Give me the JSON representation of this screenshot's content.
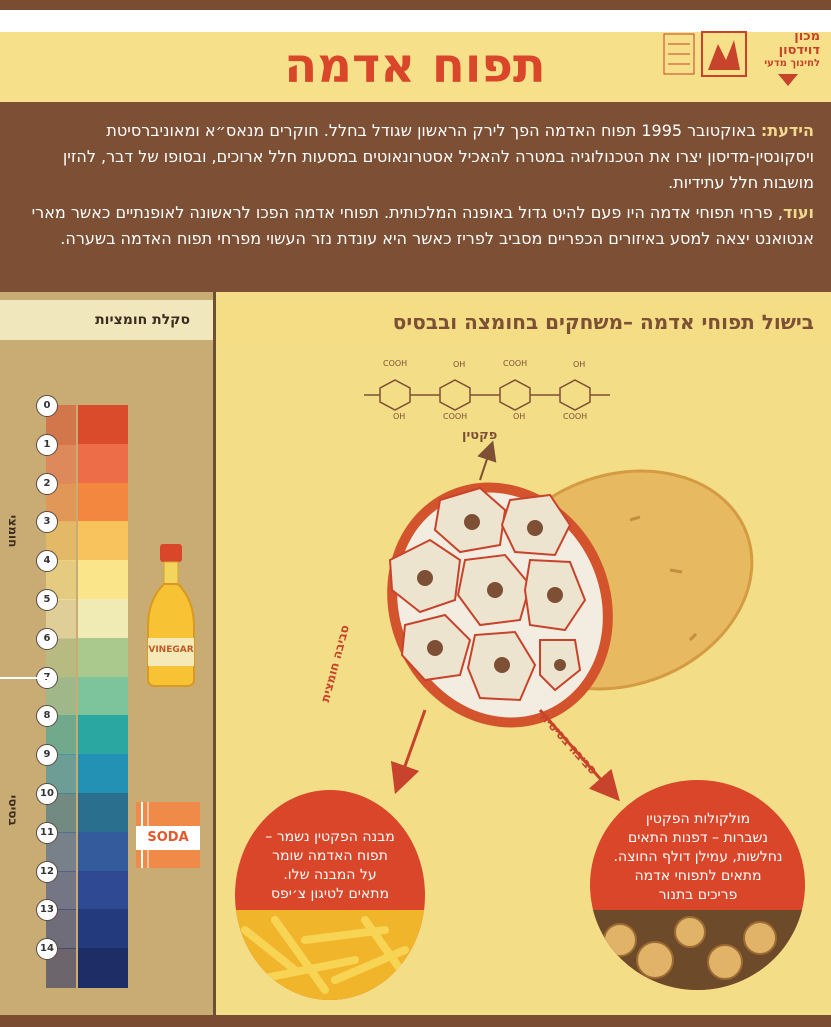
{
  "header": {
    "title": "תפוח אדמה",
    "logo_text_lines": [
      "מכון",
      "דוידסון",
      "לחינוך מדעי"
    ]
  },
  "facts": {
    "p1_label": "הידעת:",
    "p1_text": " באוקטובר 1995 תפוח האדמה הפך לירק הראשון שגודל בחלל. חוקרים מנאס״א ומאוניברסיטת ויסקונסין-מדיסון יצרו את הטכנולוגיה במטרה להאכיל אסטרונאוטים במסעות חלל ארוכים, ובסופו של דבר, להזין מושבות חלל עתידיות.",
    "p2_label": "ועוד",
    "p2_text": ", פרחי תפוחי אדמה היו פעם להיט גדול באופנה המלכותית. תפוחי אדמה הפכו לראשונה לאופנתיים כאשר מארי אנטואנט יצאה למסע באיזורים הכפריים מסביב לפריז כאשר היא עונדת נזר העשוי מפרחי תפוח האדמה בשערה."
  },
  "scale": {
    "title": "סקלת חומציות",
    "acidic_label": "חומצי",
    "basic_label": "בסיסי",
    "ticks": [
      "0",
      "1",
      "2",
      "3",
      "4",
      "5",
      "6",
      "7",
      "8",
      "9",
      "10",
      "11",
      "12",
      "13",
      "14"
    ],
    "colors": [
      "#d94b2b",
      "#ee6d49",
      "#f3873f",
      "#f8c35c",
      "#fbe58a",
      "#f0ebb5",
      "#a9c98d",
      "#7dc39b",
      "#2aa7a0",
      "#2391b3",
      "#2a6f8e",
      "#345c9c",
      "#2f4a93",
      "#233a7d",
      "#1f2d66"
    ]
  },
  "vinegar_label": "VINEGAR",
  "soda_label": "SODA",
  "diagram": {
    "heading": "בישול תפוחי אדמה –משחקים בחומצה ובבסיס",
    "pectin_label": "פקטין",
    "cooh": "COOH",
    "oh": "OH",
    "acid_arrow_label": "סביבה חומצית",
    "base_arrow_label": "סביבה בסיסית",
    "acid_bubble": [
      "מבנה הפקטין נשמר –",
      "תפוח האדמה שומר",
      "על המבנה שלו.",
      "מתאים לטיגון צ׳יפס"
    ],
    "base_bubble": [
      "מולקולות הפקטין",
      "נשברות – דפנות התאים",
      "נחלשות, עמילן דולף החוצה.",
      "מתאים לתפוחי אדמה",
      "פריכים בתנור"
    ]
  }
}
